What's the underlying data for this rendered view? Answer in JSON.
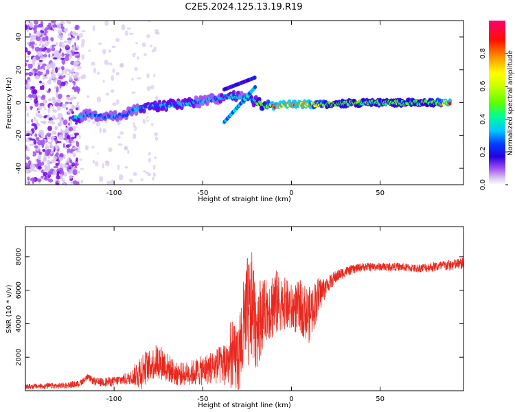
{
  "title": "C2E5.2024.125.13.19.R19",
  "panels": {
    "top": {
      "ylabel": "Frequency (Hz)",
      "xlabel": "Height of straight line (km)"
    },
    "bottom": {
      "ylabel": "SNR (10 * v/v)",
      "xlabel": "Height of straight line (km)"
    },
    "colorbar": {
      "label": "Normalized spectral amplitude",
      "ticks": [
        "0.0",
        "0.2",
        "0.4",
        "0.6",
        "0.8"
      ]
    }
  },
  "colors": {
    "snr_line": "#e8281e",
    "colormap": [
      "#ffffff",
      "#d8c8f0",
      "#a050f0",
      "#7000e8",
      "#2800e0",
      "#0040ff",
      "#00c8ff",
      "#00ff90",
      "#60ff00",
      "#ffff00",
      "#ff8000",
      "#ff0000",
      "#ff0070"
    ]
  },
  "chart_data": [
    {
      "type": "heatmap",
      "title": "C2E5.2024.125.13.19.R19",
      "xlabel": "Height of straight line (km)",
      "ylabel": "Frequency (Hz)",
      "xlim": [
        -150,
        97
      ],
      "ylim": [
        -50,
        50
      ],
      "xticks": [
        -100,
        -50,
        0,
        50
      ],
      "yticks": [
        -40,
        -20,
        0,
        20,
        40
      ],
      "colorbar": {
        "label": "Normalized spectral amplitude",
        "range": [
          0,
          1
        ],
        "ticks": [
          0.0,
          0.2,
          0.4,
          0.6,
          0.8
        ]
      },
      "ridge": [
        {
          "x": -123,
          "y": -10,
          "amp": 0.45
        },
        {
          "x": -115,
          "y": -7,
          "amp": 0.35
        },
        {
          "x": -105,
          "y": -9,
          "amp": 0.35
        },
        {
          "x": -95,
          "y": -8,
          "amp": 0.35
        },
        {
          "x": -85,
          "y": -3,
          "amp": 0.4
        },
        {
          "x": -75,
          "y": -2,
          "amp": 0.4
        },
        {
          "x": -65,
          "y": -1,
          "amp": 0.4
        },
        {
          "x": -55,
          "y": 0,
          "amp": 0.4
        },
        {
          "x": -45,
          "y": 2,
          "amp": 0.35
        },
        {
          "x": -35,
          "y": 4,
          "amp": 0.45
        },
        {
          "x": -25,
          "y": 3,
          "amp": 0.35
        },
        {
          "x": -15,
          "y": -2,
          "amp": 0.6
        },
        {
          "x": -10,
          "y": -2,
          "amp": 0.9
        },
        {
          "x": 0,
          "y": -1,
          "amp": 0.8
        },
        {
          "x": 10,
          "y": -1,
          "amp": 0.85
        },
        {
          "x": 20,
          "y": -1,
          "amp": 0.6
        },
        {
          "x": 40,
          "y": 0,
          "amp": 0.55
        },
        {
          "x": 60,
          "y": 0,
          "amp": 0.55
        },
        {
          "x": 80,
          "y": 0,
          "amp": 0.55
        },
        {
          "x": 90,
          "y": 0,
          "amp": 0.95
        }
      ]
    },
    {
      "type": "line",
      "xlabel": "Height of straight line (km)",
      "ylabel": "SNR (10 * v/v)",
      "xlim": [
        -150,
        97
      ],
      "ylim": [
        0,
        9800
      ],
      "xticks": [
        -100,
        -50,
        0,
        50
      ],
      "yticks": [
        2000,
        4000,
        6000,
        8000
      ],
      "series": [
        {
          "x": [
            -150,
            -130,
            -120,
            -115,
            -110,
            -100,
            -90,
            -85,
            -80,
            -75,
            -70,
            -65,
            -60,
            -55,
            -50,
            -45,
            -40,
            -35,
            -30,
            -28,
            -25,
            -22,
            -20,
            -15,
            -10,
            -5,
            0,
            5,
            10,
            15,
            20,
            25,
            30,
            40,
            50,
            60,
            70,
            80,
            90,
            97
          ],
          "y": [
            250,
            300,
            400,
            800,
            500,
            550,
            800,
            1200,
            1500,
            1800,
            1400,
            1000,
            1000,
            1100,
            1200,
            1400,
            1500,
            1800,
            2000,
            3000,
            4500,
            5000,
            4000,
            4800,
            5200,
            5300,
            4900,
            5000,
            4500,
            5600,
            6300,
            6800,
            7100,
            7400,
            7400,
            7400,
            7300,
            7400,
            7500,
            7600
          ],
          "spread": [
            150,
            180,
            200,
            200,
            250,
            300,
            400,
            1200,
            900,
            1100,
            900,
            700,
            700,
            800,
            900,
            1000,
            1200,
            1600,
            2500,
            3000,
            3500,
            3300,
            3000,
            1800,
            2200,
            1600,
            1500,
            1600,
            1700,
            1200,
            500,
            400,
            300,
            250,
            250,
            250,
            250,
            300,
            350,
            350
          ]
        }
      ]
    }
  ]
}
